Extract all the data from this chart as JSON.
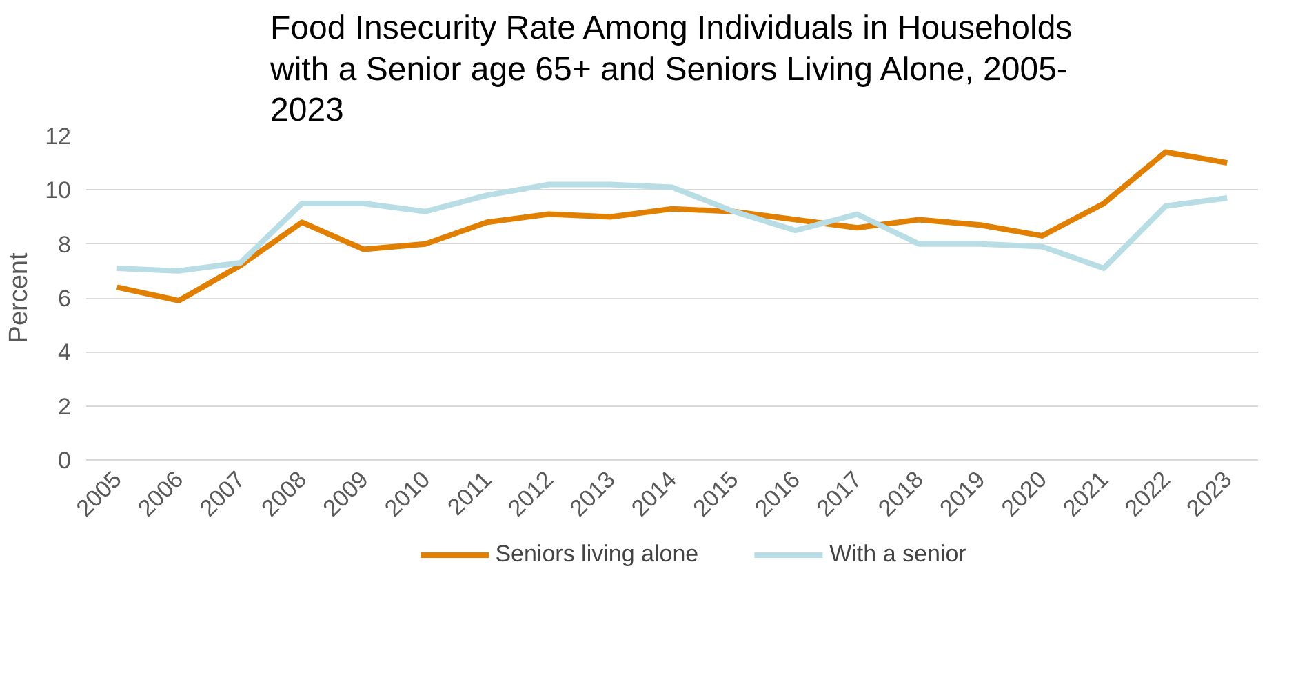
{
  "chart_data": {
    "type": "line",
    "title": "Food Insecurity Rate Among Individuals in Households\nwith a Senior age 65+ and Seniors Living Alone, 2005-\n2023",
    "ylabel": "Percent",
    "categories": [
      "2005",
      "2006",
      "2007",
      "2008",
      "2009",
      "2010",
      "2011",
      "2012",
      "2013",
      "2014",
      "2015",
      "2016",
      "2017",
      "2018",
      "2019",
      "2020",
      "2021",
      "2022",
      "2023"
    ],
    "series": [
      {
        "name": "Seniors living alone",
        "color": "#e07f00",
        "values": [
          6.4,
          5.9,
          7.2,
          8.8,
          7.8,
          8.0,
          8.8,
          9.1,
          9.0,
          9.3,
          9.2,
          8.9,
          8.6,
          8.9,
          8.7,
          8.3,
          9.5,
          11.4,
          11.0
        ]
      },
      {
        "name": "With a senior",
        "color": "#b9dde5",
        "values": [
          7.1,
          7.0,
          7.3,
          9.5,
          9.5,
          9.2,
          9.8,
          10.2,
          10.2,
          10.1,
          9.2,
          8.5,
          9.1,
          8.0,
          8.0,
          7.9,
          7.1,
          9.4,
          9.7
        ]
      }
    ],
    "ylim": [
      0,
      12
    ],
    "yticks": [
      0,
      2,
      4,
      6,
      8,
      10,
      12
    ],
    "grid": "y",
    "legend": "bottom",
    "marker": "none",
    "line_style": "solid"
  }
}
